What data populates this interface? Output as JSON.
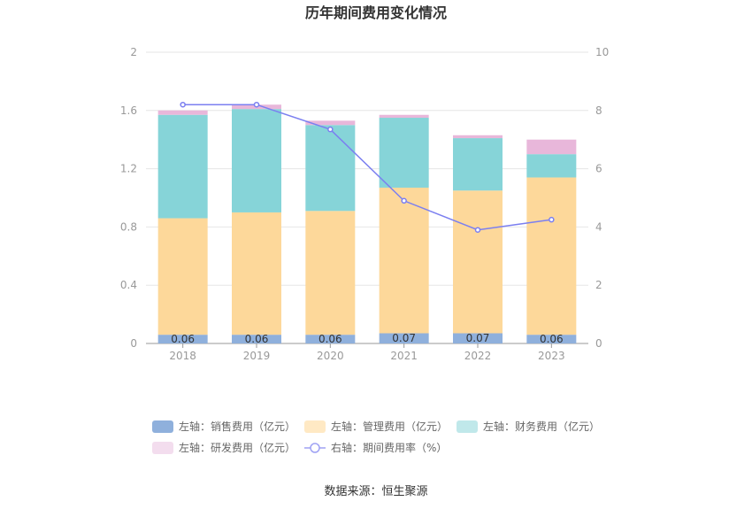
{
  "chart_data": {
    "type": "bar",
    "stacked": true,
    "title": "历年期间费用变化情况",
    "categories": [
      "2018",
      "2019",
      "2020",
      "2021",
      "2022",
      "2023"
    ],
    "left_axis": {
      "ylim": [
        0,
        2
      ],
      "ticks": [
        "0",
        "0.4",
        "0.8",
        "1.2",
        "1.6",
        "2"
      ],
      "tick_values": [
        0,
        0.4,
        0.8,
        1.2,
        1.6,
        2
      ]
    },
    "right_axis": {
      "ylim": [
        0,
        10
      ],
      "ticks": [
        "0",
        "2",
        "4",
        "6",
        "8",
        "10"
      ],
      "tick_values": [
        0,
        2,
        4,
        6,
        8,
        10
      ]
    },
    "series": [
      {
        "name": "左轴：销售费用（亿元）",
        "axis": "left",
        "type": "bar",
        "color": "#8FB0DC",
        "values": [
          0.06,
          0.06,
          0.06,
          0.07,
          0.07,
          0.06
        ],
        "labels": [
          "0.06",
          "0.06",
          "0.06",
          "0.07",
          "0.07",
          "0.06"
        ]
      },
      {
        "name": "左轴：管理费用（亿元）",
        "axis": "left",
        "type": "bar",
        "color": "#FDD89A",
        "values": [
          0.8,
          0.84,
          0.85,
          1.0,
          0.98,
          1.08
        ]
      },
      {
        "name": "左轴：财务费用（亿元）",
        "axis": "left",
        "type": "bar",
        "color": "#86D4D8",
        "values": [
          0.71,
          0.71,
          0.59,
          0.48,
          0.36,
          0.16
        ]
      },
      {
        "name": "左轴：研发费用（亿元）",
        "axis": "left",
        "type": "bar",
        "color": "#E8B7DA",
        "values": [
          0.03,
          0.03,
          0.03,
          0.02,
          0.02,
          0.1
        ]
      },
      {
        "name": "右轴：期间费用率（%）",
        "axis": "right",
        "type": "line",
        "color": "#7B7FF0",
        "values": [
          8.2,
          8.2,
          7.35,
          4.9,
          3.9,
          4.25
        ]
      }
    ],
    "legend_position": "bottom",
    "grid": true
  },
  "footer": {
    "source": "数据来源：恒生聚源"
  }
}
